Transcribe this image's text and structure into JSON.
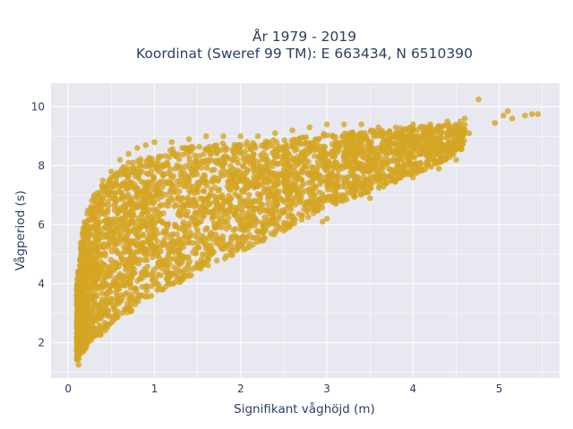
{
  "chart_data": {
    "type": "scatter",
    "title": [
      "År 1979 - 2019",
      "Koordinat (Sweref 99 TM): E 663434, N 6510390"
    ],
    "xlabel": "Signifikant våghöjd (m)",
    "ylabel": "Vågperiod (s)",
    "xlim": [
      -0.2,
      5.7
    ],
    "ylim": [
      0.8,
      10.8
    ],
    "xticks": [
      0,
      1,
      2,
      3,
      4,
      5
    ],
    "yticks": [
      2,
      4,
      6,
      8,
      10
    ],
    "grid": true,
    "colors": {
      "marker": "#d4a523",
      "plot_bg": "#e8e8f0",
      "grid": "#ffffff",
      "text": "#2a3f5f"
    },
    "marker_opacity": 0.8,
    "series": [
      {
        "points_note_free": true,
        "x": [
          0.12,
          0.12,
          0.13,
          0.15,
          0.15,
          0.18,
          0.2,
          0.22,
          0.25,
          0.3,
          0.35,
          0.4,
          0.5,
          0.6,
          0.7,
          0.8,
          0.9,
          1.0,
          1.2,
          1.4,
          1.6,
          1.8,
          2.0,
          2.2,
          2.4,
          2.6,
          2.8,
          3.0,
          3.2,
          3.4,
          3.6,
          3.8,
          4.0,
          4.2,
          4.4,
          4.6,
          0.1,
          0.1,
          0.11,
          0.3,
          0.45,
          0.6,
          1.0,
          1.5,
          2.0,
          2.5,
          3.0,
          3.5,
          4.0,
          4.3,
          4.5,
          4.76,
          4.55,
          4.95,
          5.05,
          5.1,
          5.15,
          5.3,
          5.45,
          5.38,
          2.6,
          2.95,
          0.58,
          0.5,
          0.7,
          3.5,
          4.4,
          4.65
        ],
        "y": [
          1.25,
          1.45,
          1.9,
          2.3,
          3.0,
          3.6,
          4.3,
          5.0,
          5.8,
          6.5,
          7.0,
          7.5,
          7.8,
          8.2,
          8.4,
          8.6,
          8.7,
          8.8,
          8.8,
          8.9,
          9.0,
          9.0,
          9.0,
          9.0,
          9.1,
          9.2,
          9.3,
          9.4,
          9.4,
          9.4,
          9.3,
          9.3,
          9.4,
          9.4,
          9.5,
          9.6,
          1.7,
          2.5,
          3.2,
          2.5,
          3.0,
          3.4,
          4.0,
          4.7,
          5.3,
          5.8,
          6.2,
          6.9,
          7.6,
          7.9,
          8.2,
          10.25,
          9.5,
          9.45,
          9.7,
          9.85,
          9.6,
          9.7,
          9.75,
          9.75,
          6.2,
          6.1,
          7.7,
          7.6,
          8.1,
          8.8,
          9.0,
          9.1
        ],
        "density_envelope": {
          "x": [
            0.1,
            0.15,
            0.2,
            0.3,
            0.4,
            0.5,
            0.6,
            0.8,
            1.0,
            1.2,
            1.5,
            2.0,
            2.5,
            3.0,
            3.5,
            4.0,
            4.4,
            4.6
          ],
          "y_low": [
            1.4,
            1.6,
            1.8,
            2.0,
            2.3,
            2.6,
            2.8,
            3.2,
            3.6,
            3.9,
            4.4,
            5.1,
            5.8,
            6.6,
            7.1,
            7.7,
            8.2,
            8.6
          ],
          "y_high": [
            4.0,
            5.5,
            6.3,
            7.0,
            7.4,
            7.6,
            7.9,
            8.2,
            8.4,
            8.6,
            8.7,
            8.8,
            8.9,
            9.1,
            9.2,
            9.3,
            9.4,
            9.4
          ]
        }
      }
    ]
  }
}
